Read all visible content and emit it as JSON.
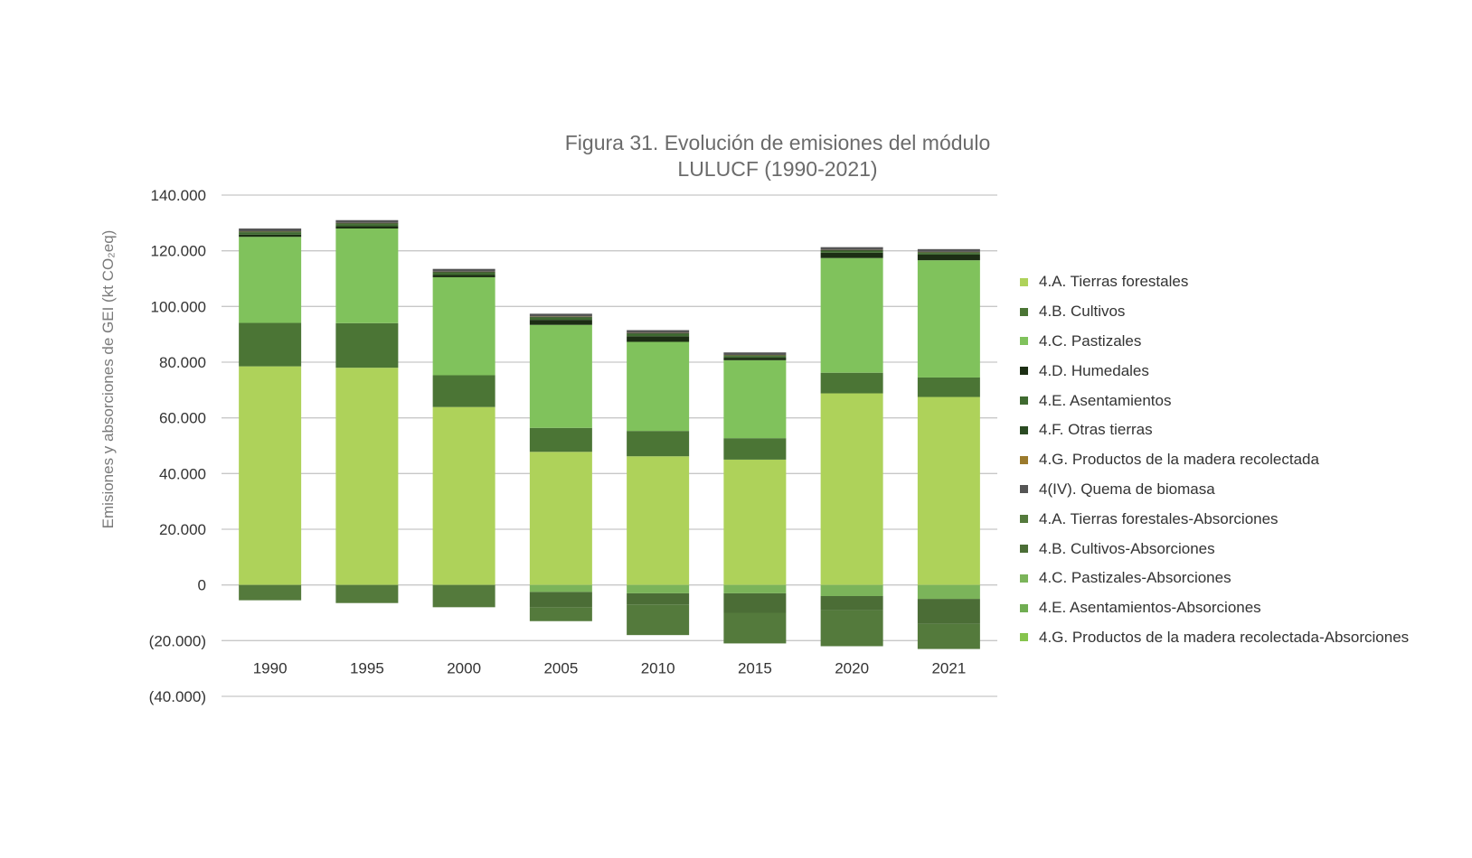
{
  "chart_data": {
    "type": "bar",
    "stacked": true,
    "title_lines": [
      "Figura 31. Evolución de emisiones del módulo",
      "LULUCF (1990-2021)"
    ],
    "ylabel": "Emisiones y absorciones de GEI (kt CO₂eq)",
    "xlabel": "",
    "ylim": [
      -40000,
      140000
    ],
    "yticks": [
      140000,
      120000,
      100000,
      80000,
      60000,
      40000,
      20000,
      0,
      -20000,
      -40000
    ],
    "ytick_labels": [
      "140.000",
      "120.000",
      "100.000",
      "80.000",
      "60.000",
      "40.000",
      "20.000",
      "0",
      "(20.000)",
      "(40.000)"
    ],
    "grid": true,
    "legend_position": "right",
    "categories": [
      "1990",
      "1995",
      "2000",
      "2005",
      "2010",
      "2015",
      "2020",
      "2021"
    ],
    "series": [
      {
        "name": "4.A. Tierras forestales",
        "color": "#aed25a",
        "values": [
          78500,
          78000,
          63900,
          47800,
          46200,
          45000,
          68800,
          67500
        ]
      },
      {
        "name": "4.B. Cultivos",
        "color": "#4b7535",
        "values": [
          15600,
          16000,
          11400,
          8600,
          9100,
          7700,
          7400,
          7000
        ]
      },
      {
        "name": "4.C. Pastizales",
        "color": "#80c25c",
        "values": [
          30900,
          34000,
          35200,
          37000,
          32000,
          28000,
          41200,
          42100
        ]
      },
      {
        "name": "4.D. Humedales",
        "color": "#1c2e14",
        "values": [
          800,
          800,
          800,
          1800,
          2000,
          900,
          1900,
          2000
        ]
      },
      {
        "name": "4.E. Asentamientos",
        "color": "#3f6a30",
        "values": [
          800,
          800,
          800,
          800,
          800,
          600,
          600,
          600
        ]
      },
      {
        "name": "4.F. Otras tierras",
        "color": "#2a4a22",
        "values": [
          300,
          300,
          300,
          300,
          300,
          300,
          300,
          300
        ]
      },
      {
        "name": "4.G. Productos de la madera recolectada",
        "color": "#9b7a2c",
        "values": [
          100,
          100,
          100,
          100,
          100,
          100,
          100,
          100
        ]
      },
      {
        "name": "4(IV). Quema de biomasa",
        "color": "#555555",
        "values": [
          1000,
          1000,
          1000,
          1000,
          1000,
          900,
          1000,
          1000
        ]
      },
      {
        "name": "4.A. Tierras forestales-Absorciones",
        "color": "#547a3c",
        "values": [
          -5500,
          -6500,
          -8000,
          -5000,
          -11000,
          -11000,
          -13000,
          -9000
        ]
      },
      {
        "name": "4.B. Cultivos-Absorciones",
        "color": "#4b6d36",
        "values": [
          0,
          0,
          0,
          -5500,
          -4000,
          -7000,
          -5000,
          -9000
        ]
      },
      {
        "name": "4.C. Pastizales-Absorciones",
        "color": "#7bb45a",
        "values": [
          0,
          0,
          0,
          -2500,
          -3000,
          -3000,
          -4000,
          -5000
        ]
      },
      {
        "name": "4.E. Asentamientos-Absorciones",
        "color": "#70ad52",
        "values": [
          0,
          0,
          0,
          0,
          0,
          0,
          0,
          0
        ]
      },
      {
        "name": "4.G. Productos de la madera recolectada-Absorciones",
        "color": "#86c44e",
        "values": [
          0,
          0,
          0,
          0,
          0,
          0,
          0,
          0
        ]
      }
    ]
  }
}
